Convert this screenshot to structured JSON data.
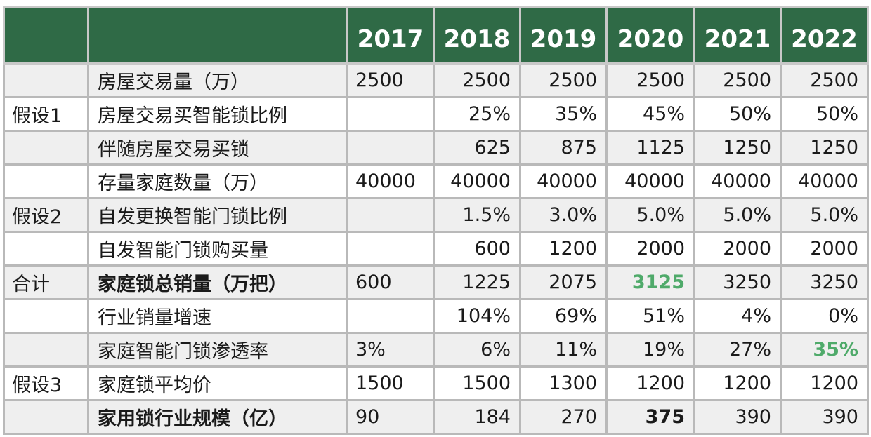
{
  "header": {
    "years": [
      "2017",
      "2018",
      "2019",
      "2020",
      "2021",
      "2022"
    ]
  },
  "rows": [
    {
      "group": "",
      "item": "房屋交易量（万）",
      "values": [
        "2500",
        "2500",
        "2500",
        "2500",
        "2500",
        "2500"
      ]
    },
    {
      "group": "假设1",
      "item": "房屋交易买智能锁比例",
      "values": [
        "",
        "25%",
        "35%",
        "45%",
        "50%",
        "50%"
      ]
    },
    {
      "group": "",
      "item": "伴随房屋交易买锁",
      "values": [
        "",
        "625",
        "875",
        "1125",
        "1250",
        "1250"
      ]
    },
    {
      "group": "",
      "item": "存量家庭数量（万）",
      "values": [
        "40000",
        "40000",
        "40000",
        "40000",
        "40000",
        "40000"
      ]
    },
    {
      "group": "假设2",
      "item": "自发更换智能门锁比例",
      "values": [
        "",
        "1.5%",
        "3.0%",
        "5.0%",
        "5.0%",
        "5.0%"
      ]
    },
    {
      "group": "",
      "item": "自发智能门锁购买量",
      "values": [
        "",
        "600",
        "1200",
        "2000",
        "2000",
        "2000"
      ]
    },
    {
      "group": "合计",
      "item": "家庭锁总销量（万把）",
      "values": [
        "600",
        "1225",
        "2075",
        "3125",
        "3250",
        "3250"
      ]
    },
    {
      "group": "",
      "item": "行业销量增速",
      "values": [
        "",
        "104%",
        "69%",
        "51%",
        "4%",
        "0%"
      ]
    },
    {
      "group": "",
      "item": "家庭智能门锁渗透率",
      "values": [
        "3%",
        "6%",
        "11%",
        "19%",
        "27%",
        "35%"
      ]
    },
    {
      "group": "假设3",
      "item": "家庭锁平均价",
      "values": [
        "1500",
        "1500",
        "1300",
        "1200",
        "1200",
        "1200"
      ]
    },
    {
      "group": "",
      "item": "家用锁行业规模（亿）",
      "values": [
        "90",
        "184",
        "270",
        "375",
        "390",
        "390"
      ]
    }
  ],
  "colors": {
    "header_bg": "#2f6a46",
    "header_text": "#ffffff",
    "highlight_green": "#4faa6a",
    "row_shade": "#efefef",
    "grid": "#b9b9b9"
  }
}
